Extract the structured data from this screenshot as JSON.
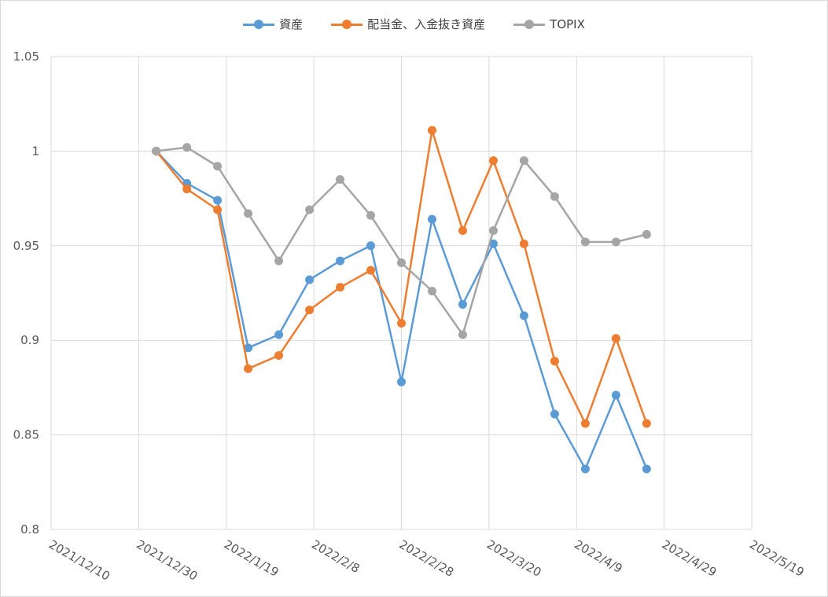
{
  "chart_data": {
    "type": "line",
    "title": "",
    "xlabel": "",
    "ylabel": "",
    "x_axis": {
      "type": "date",
      "range": [
        "2021-12-10",
        "2022-05-19"
      ],
      "tick_labels": [
        "2021/12/10",
        "2021/12/30",
        "2022/1/19",
        "2022/2/8",
        "2022/2/28",
        "2022/3/20",
        "2022/4/9",
        "2022/4/29",
        "2022/5/19"
      ]
    },
    "y_axis": {
      "range": [
        0.8,
        1.05
      ],
      "tick_labels": [
        "0.8",
        "0.85",
        "0.9",
        "0.95",
        "1",
        "1.05"
      ]
    },
    "grid": true,
    "legend_position": "top",
    "x": [
      "2022-01-03",
      "2022-01-10",
      "2022-01-17",
      "2022-01-24",
      "2022-01-31",
      "2022-02-07",
      "2022-02-14",
      "2022-02-21",
      "2022-02-28",
      "2022-03-07",
      "2022-03-14",
      "2022-03-21",
      "2022-03-28",
      "2022-04-04",
      "2022-04-11",
      "2022-04-18",
      "2022-04-25"
    ],
    "series": [
      {
        "name": "資産",
        "color": "#5b9bd5",
        "values": [
          1.0,
          0.983,
          0.974,
          0.896,
          0.903,
          0.932,
          0.942,
          0.95,
          0.878,
          0.964,
          0.919,
          0.951,
          0.913,
          0.861,
          0.832,
          0.871,
          0.832
        ]
      },
      {
        "name": "配当金、入金抜き資産",
        "color": "#ed7d31",
        "values": [
          1.0,
          0.98,
          0.969,
          0.885,
          0.892,
          0.916,
          0.928,
          0.937,
          0.909,
          1.011,
          0.958,
          0.995,
          0.951,
          0.889,
          0.856,
          0.901,
          0.856
        ]
      },
      {
        "name": "TOPIX",
        "color": "#a5a5a5",
        "values": [
          1.0,
          1.002,
          0.992,
          0.967,
          0.942,
          0.969,
          0.985,
          0.966,
          0.941,
          0.926,
          0.903,
          0.958,
          0.995,
          0.976,
          0.952,
          0.952,
          0.956
        ]
      }
    ]
  }
}
